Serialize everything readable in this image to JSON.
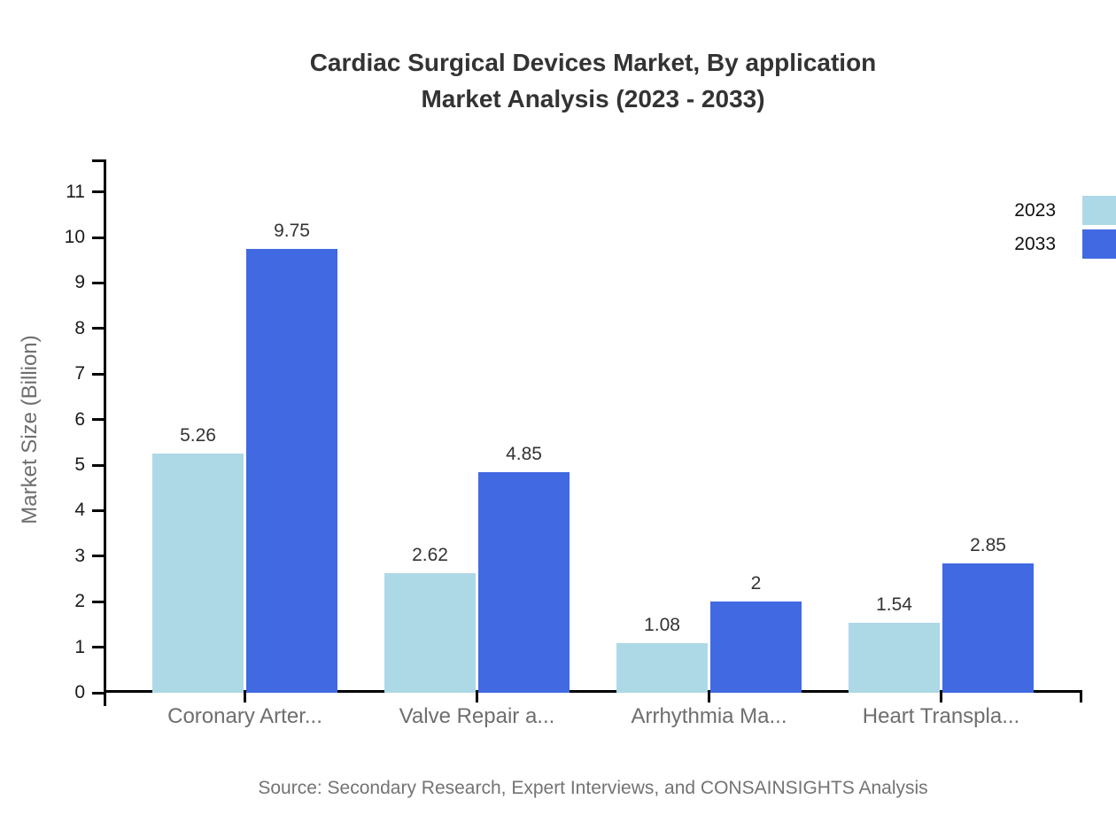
{
  "chart_data": {
    "type": "bar",
    "title": "Cardiac Surgical Devices Market, By application Market Analysis (2023 - 2033)",
    "title_lines": [
      "Cardiac Surgical Devices Market, By application",
      "Market Analysis (2023 - 2033)"
    ],
    "categories": [
      "Coronary Arter...",
      "Valve Repair a...",
      "Arrhythmia Ma...",
      "Heart Transpla..."
    ],
    "series": [
      {
        "name": "2023",
        "color": "#ADD8E6",
        "values": [
          5.26,
          2.62,
          1.08,
          1.54
        ]
      },
      {
        "name": "2033",
        "color": "#4169E1",
        "values": [
          9.75,
          4.85,
          2,
          2.85
        ]
      }
    ],
    "xlabel": "",
    "ylabel": "Market Size (Billion)",
    "yticks": [
      0,
      1,
      2,
      3,
      4,
      5,
      6,
      7,
      8,
      9,
      10,
      11
    ],
    "ylim": [
      0,
      11.7
    ],
    "grid": false,
    "legend_position": "top-right",
    "axis_color": "#000000"
  },
  "footer": {
    "source_text": "Source: Secondary Research, Expert Interviews, and CONSAINSIGHTS Analysis"
  }
}
